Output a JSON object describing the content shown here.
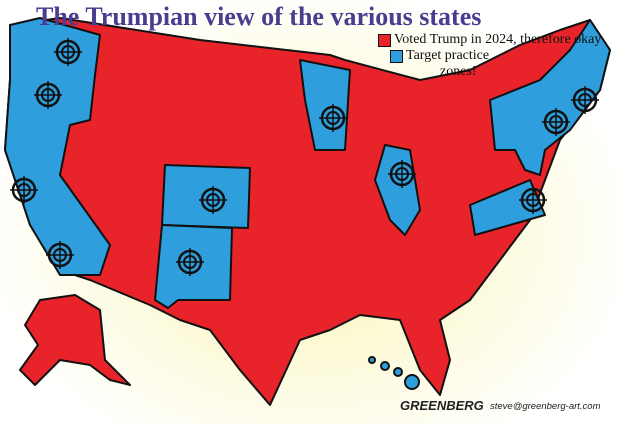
{
  "title": "The Trumpian view of the various states",
  "legend": [
    {
      "label": "Voted Trump in 2024, therefore okay",
      "color": "#e8242a"
    },
    {
      "label": "Target practice",
      "label_cont": "zones!",
      "color": "#2e9fdc"
    }
  ],
  "signature": "GREENBERG",
  "email": "steve@greenberg-art.com",
  "icons": {
    "target": "crosshair-target-icon"
  }
}
